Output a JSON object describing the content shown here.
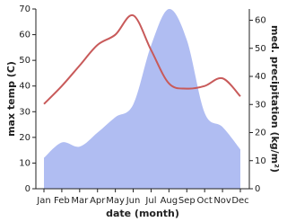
{
  "chart_data": {
    "type": "line_area",
    "categories": [
      "Jan",
      "Feb",
      "Mar",
      "Apr",
      "May",
      "Jun",
      "Jul",
      "Aug",
      "Sep",
      "Oct",
      "Nov",
      "Dec"
    ],
    "xlabel": "date (month)",
    "ylabel": "max temp (C)",
    "y2label": "med. precipitation (kg/m²)",
    "ylim": [
      0,
      70
    ],
    "yticks": [
      0,
      10,
      20,
      30,
      40,
      50,
      60,
      70
    ],
    "y2lim": [
      0,
      64
    ],
    "y2ticks": [
      0,
      10,
      20,
      30,
      40,
      50,
      60
    ],
    "series": [
      {
        "name": "max temp",
        "color": "#c85a5a",
        "values": [
          33,
          40,
          48,
          56,
          60,
          67.5,
          54,
          41,
          39,
          40,
          43,
          36
        ]
      },
      {
        "name": "precipitation",
        "color": "#b0bdf2",
        "axis": "y2",
        "values": [
          11,
          16.5,
          15,
          20,
          25.5,
          30,
          51,
          64,
          53,
          27,
          22,
          14
        ]
      }
    ]
  }
}
